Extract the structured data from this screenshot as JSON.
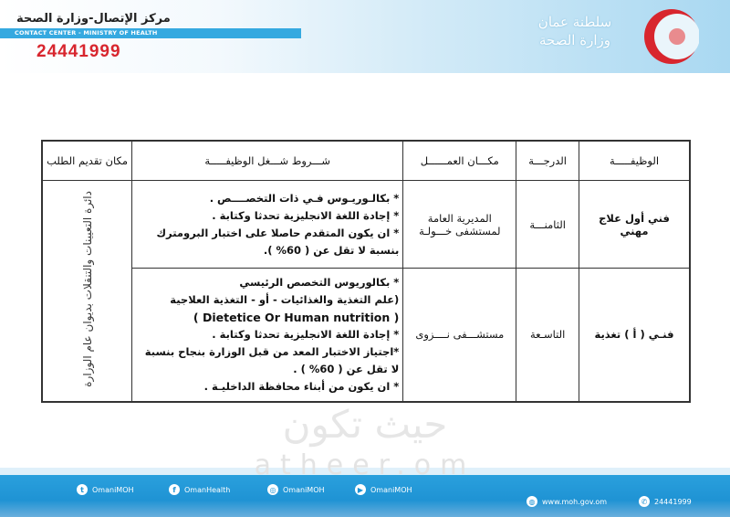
{
  "header": {
    "center_name_ar": "مركز الإتصال-وزارة الصحة",
    "center_name_en": "CONTACT CENTER - MINISTRY OF HEALTH",
    "phone": "24441999",
    "logo_text_line1": "سلطنة عمان",
    "logo_text_line2": "وزارة الصحة"
  },
  "table": {
    "headers": {
      "job": "الوظيفـــــة",
      "grade": "الدرجـــة",
      "workplace": "مكـــان العمــــــل",
      "conditions": "شـــروط شـــغل الوظيفـــــة",
      "apply_place": "مكان تقديم الطلب"
    },
    "apply_place_value": "دائرة التعيينات والتنقلات بديوان عام الوزارة",
    "rows": [
      {
        "job": "فني أول علاج مهني",
        "grade": "الثامنـــة",
        "workplace": "المديرية العامة لمستشفى خـــولـة",
        "conditions": [
          "*  بكالـوريـوس فـي ذات التخصــــص .",
          "*  إجادة اللغة الانجليزية تحدثا وكتابة .",
          "*  ان يكون المتقدم حاصلا على اختبار البرومترك بنسبة لا تقل عن ( 60% )."
        ]
      },
      {
        "job": "فنـي ( أ ) تغذية",
        "grade": "التاسـعة",
        "workplace": "مستشـــفى نــــزوى",
        "conditions": [
          "*  بكالوريوس التخصص الرئيسي",
          "(علم التغذية والغذائيات - أو - التغذية العلاجية",
          "( Dietetice Or Human nutrition )",
          "*  إجادة اللغة الانجليزية تحدثا وكتابة .",
          "*اجتياز الاختبار المعد من قبل الوزارة بنجاح بنسبة لا تقل عن ( 60% ) .",
          "*  ان يكون من أبناء محافظة الداخليـة ."
        ]
      }
    ]
  },
  "watermark": {
    "ar": "حيث تكون",
    "en": "atheer.om"
  },
  "footer": {
    "twitter": "OmaniMOH",
    "facebook": "OmanHealth",
    "instagram": "OmaniMOH",
    "youtube": "OmaniMOH",
    "website": "www.moh.gov.om",
    "phone": "24441999"
  },
  "colors": {
    "brand_blue": "#1f93d4",
    "phone_red": "#d8262e",
    "crescent_red": "#d8262e"
  }
}
